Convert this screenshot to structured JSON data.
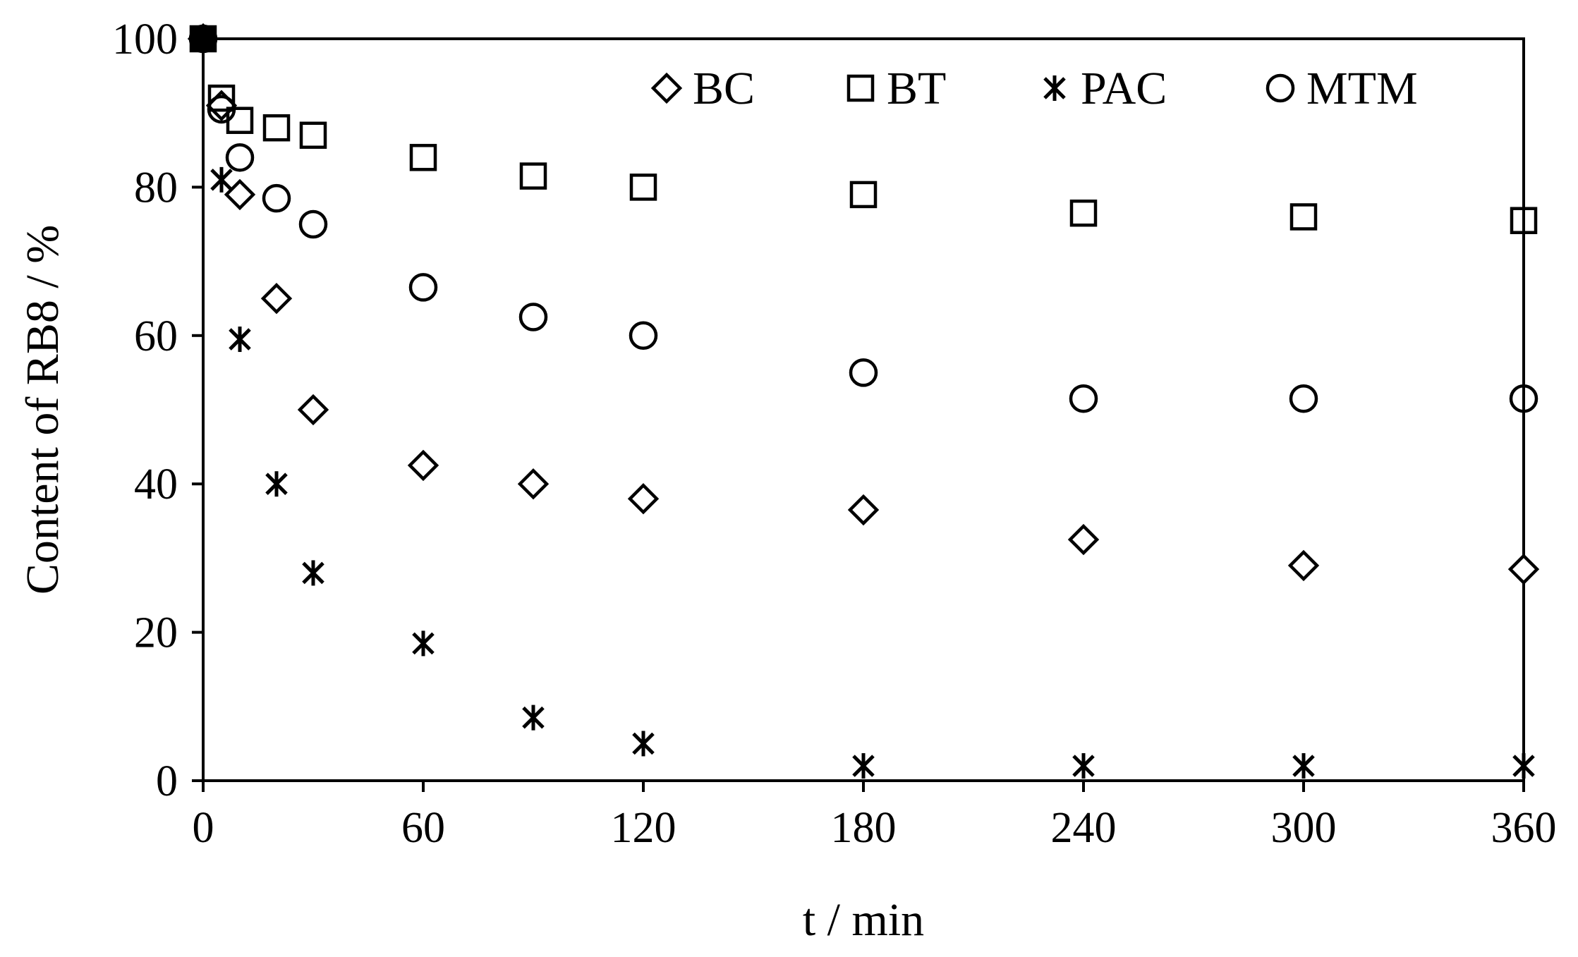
{
  "chart_data": {
    "type": "scatter",
    "title": "",
    "xlabel": "t / min",
    "ylabel": "Content of RB8 / %",
    "xlim": [
      0,
      360
    ],
    "ylim": [
      0,
      100
    ],
    "xticks": [
      0,
      60,
      120,
      180,
      240,
      300,
      360
    ],
    "yticks": [
      0,
      20,
      40,
      60,
      80,
      100
    ],
    "grid": false,
    "legend_position": "top",
    "series": [
      {
        "name": "BC",
        "marker": "diamond",
        "x": [
          0,
          5,
          10,
          20,
          30,
          60,
          90,
          120,
          180,
          240,
          300,
          360
        ],
        "y": [
          100,
          91,
          79,
          65,
          50,
          42.5,
          40,
          38,
          36.5,
          32.5,
          29,
          28.5
        ]
      },
      {
        "name": "BT",
        "marker": "square",
        "x": [
          0,
          5,
          10,
          20,
          30,
          60,
          90,
          120,
          180,
          240,
          300,
          360
        ],
        "y": [
          100,
          92,
          89,
          88,
          87,
          84,
          81.5,
          80,
          79,
          76.5,
          76,
          75.5
        ]
      },
      {
        "name": "PAC",
        "marker": "asterisk",
        "x": [
          0,
          5,
          10,
          20,
          30,
          60,
          90,
          120,
          180,
          240,
          300,
          360
        ],
        "y": [
          100,
          81,
          59.5,
          40,
          28,
          18.5,
          8.5,
          5,
          2,
          2,
          2,
          2
        ]
      },
      {
        "name": "MTM",
        "marker": "circle",
        "x": [
          0,
          5,
          10,
          20,
          30,
          60,
          90,
          120,
          180,
          240,
          300,
          360
        ],
        "y": [
          100,
          90.5,
          84,
          78.5,
          75,
          66.5,
          62.5,
          60,
          55,
          51.5,
          51.5,
          51.5
        ]
      }
    ]
  }
}
